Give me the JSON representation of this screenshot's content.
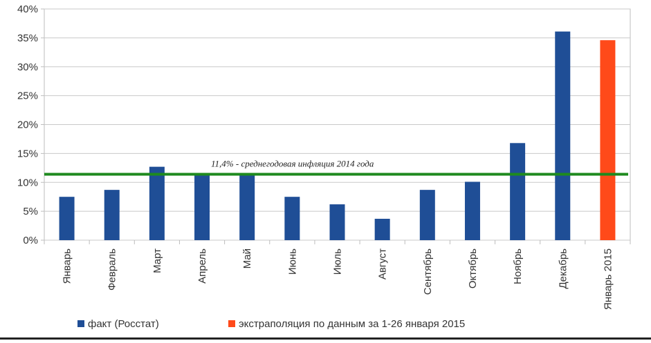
{
  "chart_data": {
    "type": "bar",
    "categories": [
      "Январь",
      "Февраль",
      "Март",
      "Апрель",
      "Май",
      "Июнь",
      "Июль",
      "Август",
      "Сентябрь",
      "Октябрь",
      "Ноябрь",
      "Декабрь",
      "Январь 2015"
    ],
    "series": [
      {
        "name": "факт (Росстат)",
        "color": "#1f4e96",
        "values": [
          7.5,
          8.7,
          12.7,
          11.2,
          11.2,
          7.5,
          6.2,
          3.7,
          8.7,
          10.1,
          16.8,
          36.1,
          null
        ]
      },
      {
        "name": "экстраполяция по данным за 1-26 января 2015",
        "color": "#ff4a1a",
        "values": [
          null,
          null,
          null,
          null,
          null,
          null,
          null,
          null,
          null,
          null,
          null,
          null,
          34.6
        ]
      }
    ],
    "yticks": [
      "0%",
      "5%",
      "10%",
      "15%",
      "20%",
      "25%",
      "30%",
      "35%",
      "40%"
    ],
    "ylim": [
      0,
      40
    ],
    "grid": true,
    "reference_line": {
      "value": 11.4,
      "color": "#1e8a1e",
      "label": "11,4% - среднегодовая инфляция 2014 года"
    },
    "legend_position": "bottom"
  }
}
